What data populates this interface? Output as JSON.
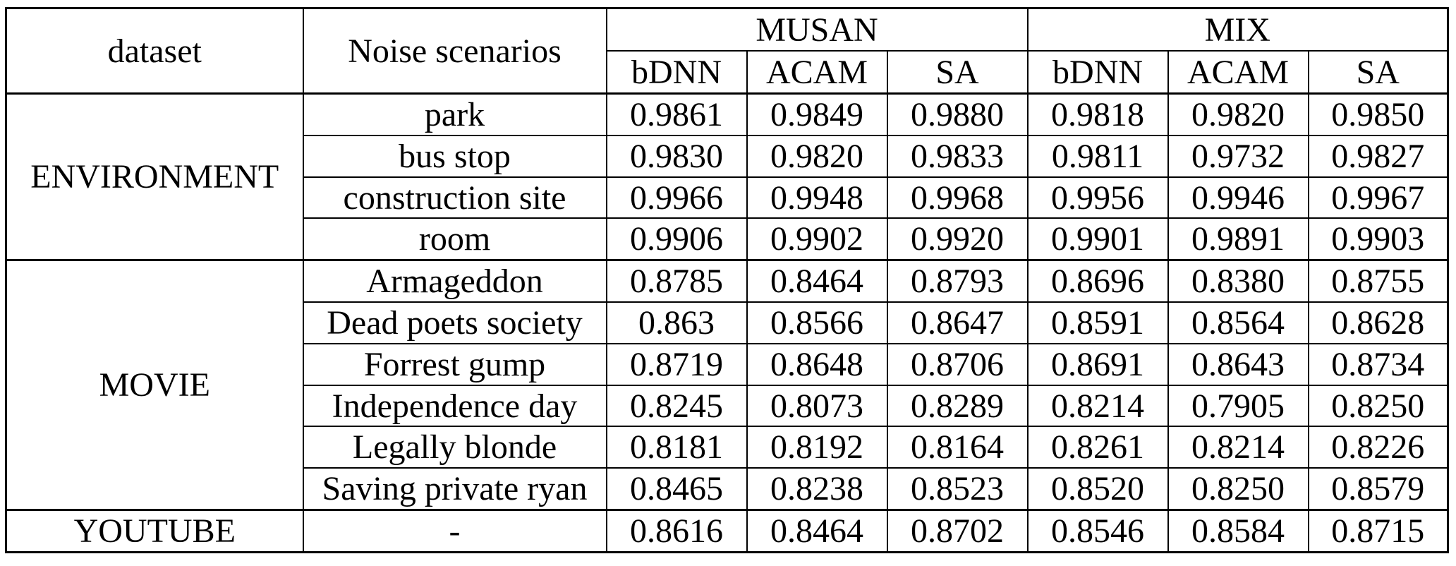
{
  "table": {
    "header": {
      "dataset": "dataset",
      "noise_scenarios": "Noise scenarios",
      "group_musan": "MUSAN",
      "group_mix": "MIX",
      "subcolumns": [
        "bDNN",
        "ACAM",
        "SA",
        "bDNN",
        "ACAM",
        "SA"
      ]
    },
    "groups": [
      {
        "dataset": "ENVIRONMENT",
        "rows": [
          {
            "scenario": "park",
            "values": [
              "0.9861",
              "0.9849",
              "0.9880",
              "0.9818",
              "0.9820",
              "0.9850"
            ],
            "bold": [
              false,
              false,
              true,
              false,
              false,
              true
            ]
          },
          {
            "scenario": "bus stop",
            "values": [
              "0.9830",
              "0.9820",
              "0.9833",
              "0.9811",
              "0.9732",
              "0.9827"
            ],
            "bold": [
              false,
              false,
              true,
              false,
              false,
              true
            ]
          },
          {
            "scenario": "construction site",
            "values": [
              "0.9966",
              "0.9948",
              "0.9968",
              "0.9956",
              "0.9946",
              "0.9967"
            ],
            "bold": [
              false,
              false,
              true,
              false,
              false,
              true
            ]
          },
          {
            "scenario": "room",
            "values": [
              "0.9906",
              "0.9902",
              "0.9920",
              "0.9901",
              "0.9891",
              "0.9903"
            ],
            "bold": [
              false,
              false,
              true,
              false,
              false,
              true
            ]
          }
        ]
      },
      {
        "dataset": "MOVIE",
        "rows": [
          {
            "scenario": "Armageddon",
            "values": [
              "0.8785",
              "0.8464",
              "0.8793",
              "0.8696",
              "0.8380",
              "0.8755"
            ],
            "bold": [
              false,
              false,
              true,
              false,
              false,
              true
            ]
          },
          {
            "scenario": "Dead poets society",
            "values": [
              "0.863",
              "0.8566",
              "0.8647",
              "0.8591",
              "0.8564",
              "0.8628"
            ],
            "bold": [
              false,
              false,
              true,
              false,
              false,
              true
            ]
          },
          {
            "scenario": "Forrest gump",
            "values": [
              "0.8719",
              "0.8648",
              "0.8706",
              "0.8691",
              "0.8643",
              "0.8734"
            ],
            "bold": [
              true,
              false,
              false,
              false,
              false,
              true
            ]
          },
          {
            "scenario": "Independence day",
            "values": [
              "0.8245",
              "0.8073",
              "0.8289",
              "0.8214",
              "0.7905",
              "0.8250"
            ],
            "bold": [
              false,
              false,
              true,
              false,
              false,
              true
            ]
          },
          {
            "scenario": "Legally blonde",
            "values": [
              "0.8181",
              "0.8192",
              "0.8164",
              "0.8261",
              "0.8214",
              "0.8226"
            ],
            "bold": [
              false,
              true,
              false,
              true,
              false,
              false
            ]
          },
          {
            "scenario": "Saving private ryan",
            "values": [
              "0.8465",
              "0.8238",
              "0.8523",
              "0.8520",
              "0.8250",
              "0.8579"
            ],
            "bold": [
              false,
              false,
              true,
              false,
              false,
              true
            ]
          }
        ]
      },
      {
        "dataset": "YOUTUBE",
        "rows": [
          {
            "scenario": "-",
            "values": [
              "0.8616",
              "0.8464",
              "0.8702",
              "0.8546",
              "0.8584",
              "0.8715"
            ],
            "bold": [
              false,
              false,
              true,
              false,
              false,
              true
            ]
          }
        ]
      }
    ]
  }
}
